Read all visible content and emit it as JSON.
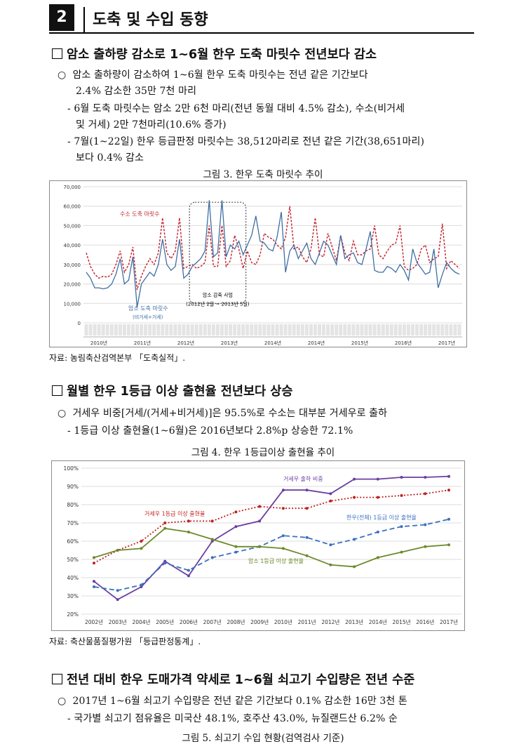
{
  "header": {
    "number": "2",
    "title": "도축 및 수입 동향"
  },
  "section1": {
    "heading": "암소 출하량 감소로 1~6월 한우 도축 마릿수 전년보다 감소",
    "bullet": "○",
    "b1_line1": "암소 출하량이 감소하여 1~6월 한우 도축 마릿수는 전년 같은 기간보다",
    "b1_line2": "2.4% 감소한 35만 7천 마리",
    "d1_line1": "- 6월 도축 마릿수는 암소 2만 6천 마리(전년 동월 대비 4.5% 감소), 수소(비거세",
    "d1_line2": "및 거세) 2만 7천마리(10.6% 증가)",
    "d2_line1": "- 7월(1~22일) 한우 등급판정 마릿수는 38,512마리로 전년 같은 기간(38,651마리)",
    "d2_line2": "보다 0.4% 감소",
    "figure_caption": "그림 3.  한우 도축 마릿수 추이",
    "source": "자료: 농림축산검역본부 「도축실적」."
  },
  "section2": {
    "heading": "월별 한우 1등급 이상 출현율 전년보다 상승",
    "bullet": "○",
    "b1_line1": "거세우 비중[거세/(거세+비거세)]은 95.5%로 수소는 대부분 거세우로 출하",
    "d1_line1": "- 1등급 이상 출현율(1~6월)은 2016년보다 2.8%p 상승한 72.1%",
    "figure_caption": "그림 4.  한우 1등급이상 출현율 추이",
    "source": "자료: 축산물품질평가원 「등급판정통계」."
  },
  "section3": {
    "heading": "전년 대비 한우 도매가격 약세로 1~6월 쇠고기 수입량은 전년 수준",
    "bullet": "○",
    "b1_line1": "2017년 1~6월 쇠고기 수입량은 전년 같은 기간보다 0.1% 감소한 16만 3천 톤",
    "d1_line1": "- 국가별 쇠고기 점유율은 미국산 48.1%, 호주산 43.0%, 뉴질랜드산 6.2% 순",
    "figure_caption": "그림 5.  쇠고기 수입 현황(검역검사 기준)"
  },
  "chart_data": [
    {
      "type": "line",
      "y_ticks": [
        "70,000",
        "60,000",
        "50,000",
        "40,000",
        "30,000",
        "20,000",
        "10,000",
        "0"
      ],
      "ylim": [
        0,
        70000
      ],
      "year_labels": [
        "2010년",
        "2011년",
        "2012년",
        "2013년",
        "2014년",
        "2014년",
        "2015년",
        "2016년",
        "2017년"
      ],
      "annotations": {
        "box_line1": "암소 감축 사업",
        "box_line2": "(2012년 2월 ~ 2013년 5월)"
      },
      "series": [
        {
          "name": "수소 도축 마릿수",
          "color": "#c0202a",
          "dash": true,
          "values": [
            36000,
            29000,
            25000,
            23000,
            24000,
            23500,
            25000,
            30000,
            37000,
            26000,
            30000,
            39000,
            17000,
            24000,
            29000,
            33000,
            30000,
            36000,
            54000,
            36000,
            33000,
            37000,
            54000,
            28000,
            29000,
            30000,
            28000,
            29000,
            31000,
            50000,
            29000,
            29000,
            50000,
            29000,
            32000,
            45000,
            38000,
            28000,
            37000,
            31000,
            30000,
            35000,
            46000,
            44000,
            43000,
            40000,
            38000,
            44000,
            60000,
            38000,
            39000,
            34000,
            31000,
            38000,
            54000,
            35000,
            34000,
            46000,
            39000,
            32000,
            45000,
            36000,
            32000,
            42000,
            35000,
            35000,
            37000,
            38000,
            50000,
            35000,
            33000,
            37000,
            40000,
            41000,
            50000,
            29000,
            27000,
            28000,
            30000,
            38000,
            40000,
            31000,
            33000,
            34000,
            51000,
            28000,
            32000,
            30000,
            28000
          ]
        },
        {
          "name": "암소 도축 마릿수",
          "color": "#3f6ea3",
          "dash": false,
          "values": [
            26000,
            23000,
            18000,
            18000,
            17500,
            18000,
            20000,
            25000,
            33000,
            20000,
            22000,
            34000,
            8000,
            20000,
            23000,
            26000,
            24000,
            30000,
            43000,
            30000,
            27000,
            29000,
            43000,
            23000,
            25000,
            29000,
            31000,
            33000,
            37000,
            63000,
            34000,
            36000,
            63000,
            34000,
            40000,
            38000,
            42000,
            35000,
            40000,
            45000,
            55000,
            42000,
            41000,
            38000,
            37000,
            44000,
            57000,
            26000,
            37000,
            40000,
            33000,
            37000,
            41000,
            33000,
            30000,
            36000,
            42000,
            40000,
            35000,
            30000,
            45000,
            33000,
            35000,
            36000,
            31000,
            30000,
            38000,
            47000,
            27000,
            26000,
            26000,
            29000,
            28000,
            26000,
            30000,
            27000,
            22000,
            38000,
            31000,
            28000,
            25000,
            26000,
            38000,
            18000,
            25000,
            31000,
            28000,
            26000,
            25000
          ]
        }
      ]
    },
    {
      "type": "line",
      "categories": [
        "2002년",
        "2003년",
        "2004년",
        "2005년",
        "2006년",
        "2007년",
        "2008년",
        "2009년",
        "2010년",
        "2011년",
        "2012년",
        "2013년",
        "2014년",
        "2015년",
        "2016년",
        "2017년"
      ],
      "y_ticks": [
        "100%",
        "90%",
        "80%",
        "70%",
        "60%",
        "50%",
        "40%",
        "30%",
        "20%"
      ],
      "ylim": [
        20,
        100
      ],
      "series": [
        {
          "name": "거세우 출하 비중",
          "color": "#6b3fa0",
          "style": "solid",
          "values": [
            38,
            28,
            35,
            49,
            41,
            60,
            68,
            71,
            88,
            88,
            86,
            94,
            94,
            95,
            95,
            95.5
          ]
        },
        {
          "name": "거세우 1등급 이상 출현율",
          "color": "#c02020",
          "style": "dotted",
          "values": [
            48,
            55,
            60,
            70,
            71,
            71,
            76,
            79,
            78,
            78,
            82,
            84,
            84,
            85,
            86,
            88
          ]
        },
        {
          "name": "한우(전체) 1등급 이상 출현율",
          "color": "#3a70c0",
          "style": "dashed",
          "values": [
            35,
            33,
            36,
            48,
            44,
            51,
            54,
            57,
            63,
            62,
            58,
            61,
            65,
            68,
            69,
            72
          ]
        },
        {
          "name": "암소 1등급 이상 출현율",
          "color": "#6b8a2a",
          "style": "solid",
          "values": [
            51,
            55,
            56,
            67,
            65,
            61,
            57,
            57,
            56,
            52,
            47,
            46,
            51,
            54,
            57,
            58
          ]
        }
      ]
    }
  ]
}
